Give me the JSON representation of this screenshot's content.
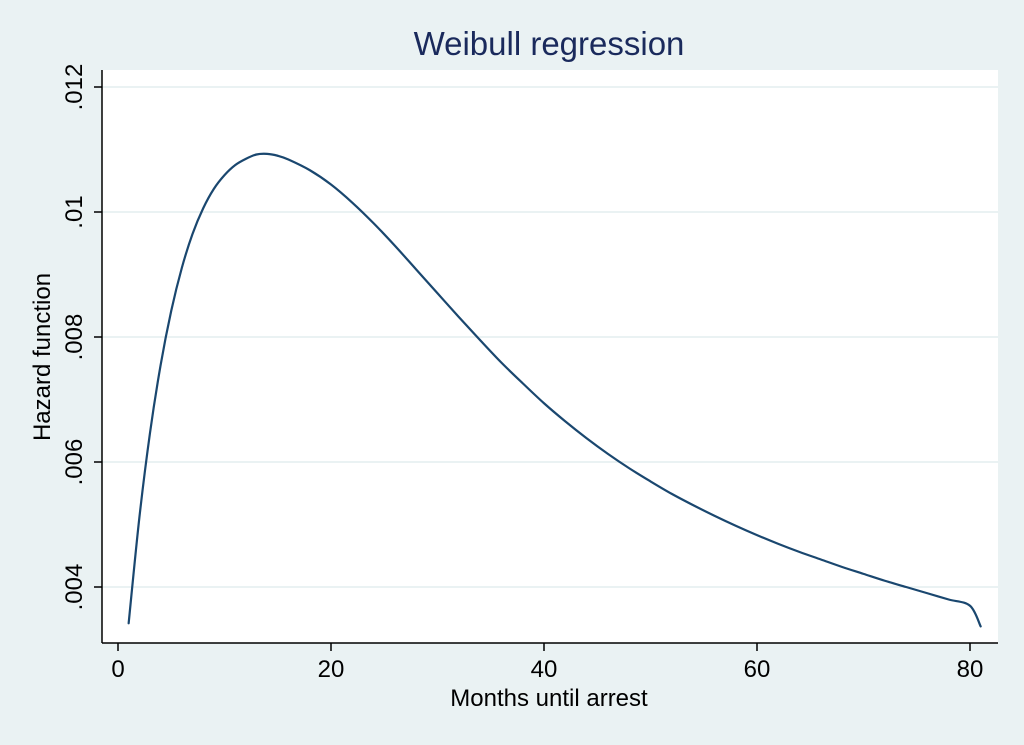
{
  "chart_data": {
    "type": "line",
    "title": "Weibull regression",
    "xlabel": "Months until arrest",
    "ylabel": "Hazard function",
    "xlim": [
      0,
      82
    ],
    "ylim": [
      0.0031,
      0.0123
    ],
    "x_ticks": [
      {
        "value": 0,
        "label": "0"
      },
      {
        "value": 20,
        "label": "20"
      },
      {
        "value": 40,
        "label": "40"
      },
      {
        "value": 60,
        "label": "60"
      },
      {
        "value": 80,
        "label": "80"
      }
    ],
    "y_ticks": [
      {
        "value": 0.004,
        "label": ".004"
      },
      {
        "value": 0.006,
        "label": ".006"
      },
      {
        "value": 0.008,
        "label": ".008"
      },
      {
        "value": 0.01,
        "label": ".01"
      },
      {
        "value": 0.012,
        "label": ".012"
      }
    ],
    "grid": "horizontal",
    "legend": "none",
    "series": [
      {
        "color": "#1a476f",
        "x": [
          1,
          2,
          3,
          4,
          5,
          6,
          7,
          8,
          9,
          10,
          11,
          12,
          13,
          14,
          15,
          16,
          18,
          20,
          22,
          24,
          26,
          28,
          30,
          32,
          34,
          36,
          38,
          40,
          42,
          44,
          46,
          48,
          50,
          52,
          54,
          56,
          58,
          60,
          62,
          64,
          66,
          68,
          70,
          72,
          74,
          76,
          78,
          80,
          81
        ],
        "values": [
          0.00342,
          0.0051,
          0.00646,
          0.00755,
          0.00842,
          0.00911,
          0.00965,
          0.01006,
          0.01037,
          0.01059,
          0.01075,
          0.01085,
          0.01092,
          0.01093,
          0.0109,
          0.01084,
          0.01067,
          0.01044,
          0.01015,
          0.00982,
          0.00946,
          0.00908,
          0.0087,
          0.00832,
          0.00795,
          0.00759,
          0.00726,
          0.00694,
          0.00665,
          0.00638,
          0.00613,
          0.0059,
          0.00569,
          0.00549,
          0.00531,
          0.00514,
          0.00498,
          0.00483,
          0.00469,
          0.00456,
          0.00444,
          0.00432,
          0.00421,
          0.0041,
          0.004,
          0.0039,
          0.0038,
          0.0037,
          0.00337
        ]
      }
    ]
  },
  "colors": {
    "page_background": "#eaf2f3",
    "plot_background": "#ffffff",
    "grid": "#eaf2f3",
    "line": "#1a476f",
    "title": "#1a2a5c"
  }
}
